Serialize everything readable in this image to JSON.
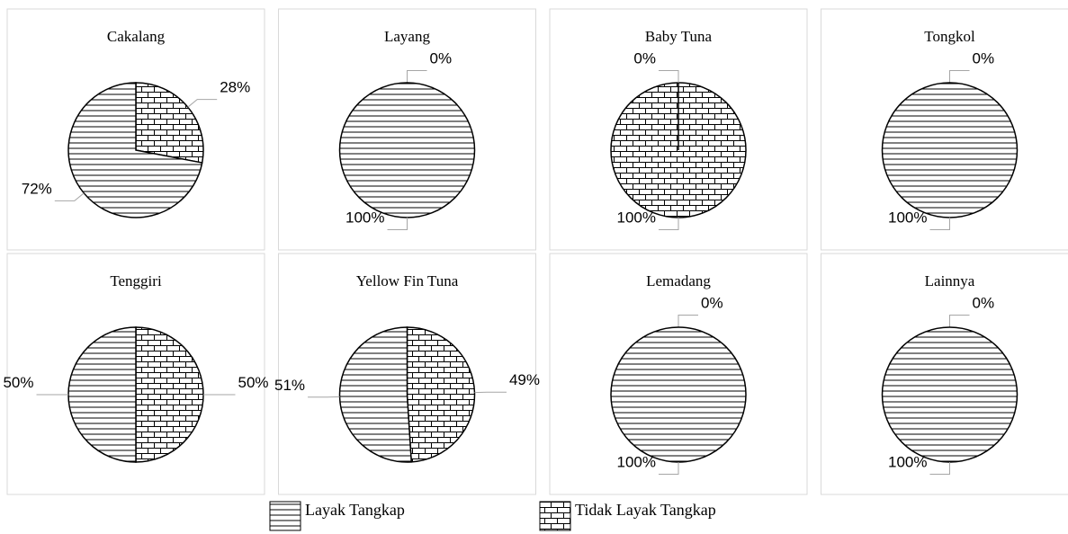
{
  "chart_data": [
    {
      "type": "pie",
      "title": "Cakalang",
      "values": [
        72,
        28
      ],
      "value_labels": [
        "72%",
        "28%"
      ]
    },
    {
      "type": "pie",
      "title": "Layang",
      "values": [
        100,
        0
      ],
      "value_labels": [
        "100%",
        "0%"
      ]
    },
    {
      "type": "pie",
      "title": "Baby Tuna",
      "values": [
        0,
        100
      ],
      "value_labels": [
        "0%",
        "100%"
      ]
    },
    {
      "type": "pie",
      "title": "Tongkol",
      "values": [
        100,
        0
      ],
      "value_labels": [
        "100%",
        "0%"
      ]
    },
    {
      "type": "pie",
      "title": "Tenggiri",
      "values": [
        50,
        50
      ],
      "value_labels": [
        "50%",
        "50%"
      ]
    },
    {
      "type": "pie",
      "title": "Yellow Fin Tuna",
      "values": [
        51,
        49
      ],
      "value_labels": [
        "51%",
        "49%"
      ]
    },
    {
      "type": "pie",
      "title": "Lemadang",
      "values": [
        100,
        0
      ],
      "value_labels": [
        "100%",
        "0%"
      ]
    },
    {
      "type": "pie",
      "title": "Lainnya",
      "values": [
        100,
        0
      ],
      "value_labels": [
        "100%",
        "0%"
      ]
    }
  ],
  "legend": [
    "Layak Tangkap",
    "Tidak Layak Tangkap"
  ]
}
